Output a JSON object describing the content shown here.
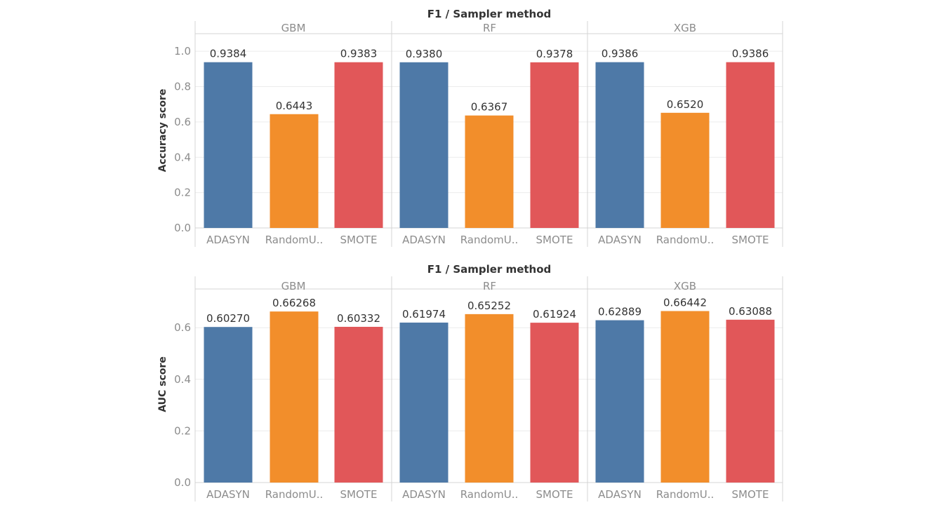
{
  "chart_data": [
    {
      "type": "bar",
      "title": "F1 / Sampler method",
      "ylabel": "Accuracy score",
      "ylim": [
        0,
        1.1
      ],
      "yticks": [
        0.0,
        0.2,
        0.4,
        0.6,
        0.8,
        1.0
      ],
      "ytick_labels": [
        "0.0",
        "0.2",
        "0.4",
        "0.6",
        "0.8",
        "1.0"
      ],
      "panels": [
        "GBM",
        "RF",
        "XGB"
      ],
      "categories": [
        "ADASYN",
        "RandomU..",
        "SMOTE"
      ],
      "values": {
        "GBM": [
          0.9384,
          0.6443,
          0.9383
        ],
        "RF": [
          0.938,
          0.6367,
          0.9378
        ],
        "XGB": [
          0.9386,
          0.652,
          0.9386
        ]
      },
      "value_labels": {
        "GBM": [
          "0.9384",
          "0.6443",
          "0.9383"
        ],
        "RF": [
          "0.9380",
          "0.6367",
          "0.9378"
        ],
        "XGB": [
          "0.9386",
          "0.6520",
          "0.9386"
        ]
      },
      "colors": [
        "#4e79a7",
        "#f28e2b",
        "#e15759"
      ],
      "grid": true
    },
    {
      "type": "bar",
      "title": "F1 / Sampler method",
      "ylabel": "AUC score",
      "ylim": [
        0,
        0.75
      ],
      "yticks": [
        0.0,
        0.2,
        0.4,
        0.6
      ],
      "ytick_labels": [
        "0.0",
        "0.2",
        "0.4",
        "0.6"
      ],
      "panels": [
        "GBM",
        "RF",
        "XGB"
      ],
      "categories": [
        "ADASYN",
        "RandomU..",
        "SMOTE"
      ],
      "values": {
        "GBM": [
          0.6027,
          0.66268,
          0.60332
        ],
        "RF": [
          0.61974,
          0.65252,
          0.61924
        ],
        "XGB": [
          0.62889,
          0.66442,
          0.63088
        ]
      },
      "value_labels": {
        "GBM": [
          "0.60270",
          "0.66268",
          "0.60332"
        ],
        "RF": [
          "0.61974",
          "0.65252",
          "0.61924"
        ],
        "XGB": [
          "0.62889",
          "0.66442",
          "0.63088"
        ]
      },
      "colors": [
        "#4e79a7",
        "#f28e2b",
        "#e15759"
      ],
      "grid": true
    }
  ]
}
